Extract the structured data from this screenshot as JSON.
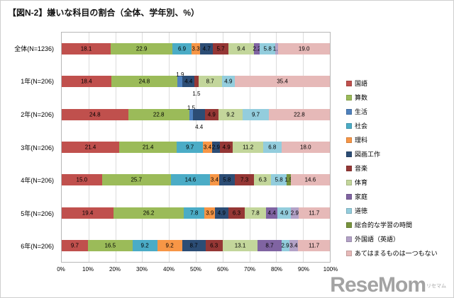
{
  "page": {
    "title": "【図N-2】嫌いな科目の割合（全体、学年別、%）"
  },
  "logo": {
    "text": "ReseMom",
    "sub": "リセマム"
  },
  "chart_data": {
    "type": "bar",
    "orientation": "horizontal",
    "stacked": true,
    "unit": "%",
    "title": "【図N-2】嫌いな科目の割合（全体、学年別、%）",
    "legend_position": "right",
    "x_axis": {
      "min": 0,
      "max": 100,
      "grid": true,
      "tick_labels": [
        "0%",
        "10%",
        "20%",
        "30%",
        "40%",
        "50%",
        "60%",
        "70%",
        "80%",
        "90%",
        "100%"
      ]
    },
    "subjects": [
      {
        "name": "国語",
        "color": "#C0504D"
      },
      {
        "name": "算数",
        "color": "#9BBB59"
      },
      {
        "name": "生活",
        "color": "#4F81BD"
      },
      {
        "name": "社会",
        "color": "#4BACC6"
      },
      {
        "name": "理科",
        "color": "#F79646"
      },
      {
        "name": "図画工作",
        "color": "#2C4D75"
      },
      {
        "name": "音楽",
        "color": "#953735"
      },
      {
        "name": "体育",
        "color": "#C3D69B"
      },
      {
        "name": "家庭",
        "color": "#8064A2"
      },
      {
        "name": "道徳",
        "color": "#93CDDD"
      },
      {
        "name": "総合的な学習の時間",
        "color": "#77933C"
      },
      {
        "name": "外国語（英語）",
        "color": "#B3A2C7"
      },
      {
        "name": "あてはまるものは一つもない",
        "color": "#E6B9B8"
      }
    ],
    "rows": [
      {
        "label": "全体(N=1236)",
        "segments": [
          {
            "s": "国語",
            "v": 18.1
          },
          {
            "s": "算数",
            "v": 22.9
          },
          {
            "s": "社会",
            "v": 6.9
          },
          {
            "s": "理科",
            "v": 3.3
          },
          {
            "s": "図画工作",
            "v": 4.7
          },
          {
            "s": "音楽",
            "v": 5.7
          },
          {
            "s": "体育",
            "v": 9.4
          },
          {
            "s": "家庭",
            "v": 2.2
          },
          {
            "s": "道徳",
            "v": 5.8
          },
          {
            "s": "外国語（英語）",
            "v": 1.1
          },
          {
            "s": "あてはまるものは一つもない",
            "v": 19.0
          }
        ]
      },
      {
        "label": "1年(N=206)",
        "segments": [
          {
            "s": "国語",
            "v": 18.4
          },
          {
            "s": "算数",
            "v": 24.8
          },
          {
            "s": "生活",
            "v": 1.9,
            "lp": "above"
          },
          {
            "s": "図画工作",
            "v": 4.4
          },
          {
            "s": "音楽",
            "v": 1.5,
            "lp": "below"
          },
          {
            "s": "体育",
            "v": 8.7
          },
          {
            "s": "道徳",
            "v": 4.9
          },
          {
            "s": "あてはまるものは一つもない",
            "v": 35.4
          }
        ]
      },
      {
        "label": "2年(N=206)",
        "segments": [
          {
            "s": "国語",
            "v": 24.8
          },
          {
            "s": "算数",
            "v": 22.8
          },
          {
            "s": "生活",
            "v": 1.5,
            "lp": "above"
          },
          {
            "s": "図画工作",
            "v": 4.4,
            "lp": "below"
          },
          {
            "s": "音楽",
            "v": 4.9
          },
          {
            "s": "体育",
            "v": 9.2
          },
          {
            "s": "道徳",
            "v": 9.7
          },
          {
            "s": "あてはまるものは一つもない",
            "v": 22.8
          }
        ]
      },
      {
        "label": "3年(N=206)",
        "segments": [
          {
            "s": "国語",
            "v": 21.4
          },
          {
            "s": "算数",
            "v": 21.4
          },
          {
            "s": "社会",
            "v": 9.7
          },
          {
            "s": "理科",
            "v": 3.4
          },
          {
            "s": "図画工作",
            "v": 2.9
          },
          {
            "s": "音楽",
            "v": 4.9
          },
          {
            "s": "体育",
            "v": 11.2
          },
          {
            "s": "道徳",
            "v": 6.8
          },
          {
            "s": "あてはまるものは一つもない",
            "v": 18.0
          }
        ]
      },
      {
        "label": "4年(N=206)",
        "segments": [
          {
            "s": "国語",
            "v": 15.0
          },
          {
            "s": "算数",
            "v": 25.7
          },
          {
            "s": "社会",
            "v": 14.6
          },
          {
            "s": "理科",
            "v": 3.4
          },
          {
            "s": "図画工作",
            "v": 5.8
          },
          {
            "s": "音楽",
            "v": 7.3
          },
          {
            "s": "体育",
            "v": 6.3
          },
          {
            "s": "道徳",
            "v": 5.8
          },
          {
            "s": "総合的な学習の時間",
            "v": 1.5
          },
          {
            "s": "あてはまるものは一つもない",
            "v": 14.6
          }
        ]
      },
      {
        "label": "5年(N=206)",
        "segments": [
          {
            "s": "国語",
            "v": 19.4
          },
          {
            "s": "算数",
            "v": 26.2
          },
          {
            "s": "社会",
            "v": 7.8
          },
          {
            "s": "理科",
            "v": 3.9
          },
          {
            "s": "図画工作",
            "v": 4.9
          },
          {
            "s": "音楽",
            "v": 6.3
          },
          {
            "s": "体育",
            "v": 7.8
          },
          {
            "s": "家庭",
            "v": 4.4
          },
          {
            "s": "道徳",
            "v": 4.9
          },
          {
            "s": "外国語（英語）",
            "v": 2.9
          },
          {
            "s": "あてはまるものは一つもない",
            "v": 11.7
          }
        ]
      },
      {
        "label": "6年(N=206)",
        "segments": [
          {
            "s": "国語",
            "v": 9.7
          },
          {
            "s": "算数",
            "v": 16.5
          },
          {
            "s": "社会",
            "v": 9.2
          },
          {
            "s": "理科",
            "v": 9.2
          },
          {
            "s": "図画工作",
            "v": 8.7
          },
          {
            "s": "音楽",
            "v": 6.3
          },
          {
            "s": "体育",
            "v": 13.1
          },
          {
            "s": "家庭",
            "v": 8.7
          },
          {
            "s": "道徳",
            "v": 2.9
          },
          {
            "s": "外国語（英語）",
            "v": 3.4
          },
          {
            "s": "あてはまるものは一つもない",
            "v": 11.7
          }
        ]
      }
    ]
  }
}
